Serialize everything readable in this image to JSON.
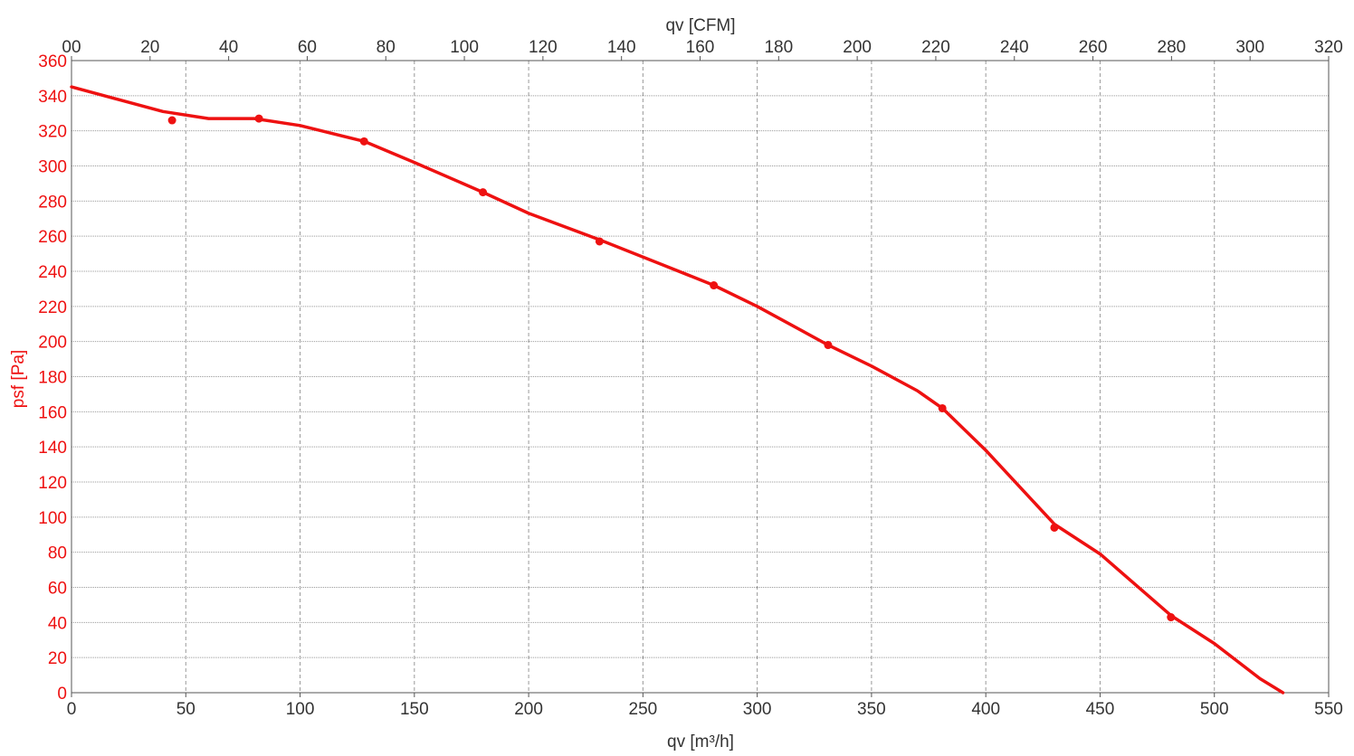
{
  "chart_data": {
    "type": "line",
    "title": "",
    "xlabel": "qv [m³/h]",
    "x2label": "qv [CFM]",
    "ylabel": "psf [Pa]",
    "xlim": [
      0,
      550
    ],
    "x2lim": [
      0,
      320
    ],
    "ylim": [
      0,
      360
    ],
    "x_ticks": [
      "0",
      "50",
      "100",
      "150",
      "200",
      "250",
      "300",
      "350",
      "400",
      "450",
      "500",
      "550"
    ],
    "x2_ticks": [
      "00",
      "20",
      "40",
      "60",
      "80",
      "100",
      "120",
      "140",
      "160",
      "180",
      "200",
      "220",
      "240",
      "260",
      "280",
      "300",
      "320"
    ],
    "y_ticks": [
      "0",
      "20",
      "40",
      "60",
      "80",
      "100",
      "120",
      "140",
      "160",
      "180",
      "200",
      "220",
      "240",
      "260",
      "280",
      "300",
      "320",
      "340",
      "360"
    ],
    "grid": true,
    "colors": {
      "curve": "#ee1111",
      "grid": "#999999",
      "axis": "#555555",
      "text": "#333333",
      "yaxis_text": "#ee1111"
    },
    "series": [
      {
        "name": "",
        "curve": [
          [
            0,
            345
          ],
          [
            20,
            338
          ],
          [
            40,
            331
          ],
          [
            60,
            327
          ],
          [
            80,
            327
          ],
          [
            100,
            323
          ],
          [
            128,
            314
          ],
          [
            150,
            302
          ],
          [
            180,
            285
          ],
          [
            200,
            273
          ],
          [
            231,
            258
          ],
          [
            260,
            243
          ],
          [
            281,
            232
          ],
          [
            300,
            220
          ],
          [
            331,
            198
          ],
          [
            350,
            186
          ],
          [
            370,
            172
          ],
          [
            381,
            162
          ],
          [
            400,
            138
          ],
          [
            430,
            96
          ],
          [
            450,
            79
          ],
          [
            481,
            44
          ],
          [
            500,
            28
          ],
          [
            520,
            8
          ],
          [
            530,
            0
          ]
        ],
        "points": [
          [
            44,
            326
          ],
          [
            82,
            327
          ],
          [
            128,
            314
          ],
          [
            180,
            285
          ],
          [
            231,
            257
          ],
          [
            281,
            232
          ],
          [
            331,
            198
          ],
          [
            381,
            162
          ],
          [
            430,
            94
          ],
          [
            481,
            43
          ]
        ]
      }
    ]
  }
}
